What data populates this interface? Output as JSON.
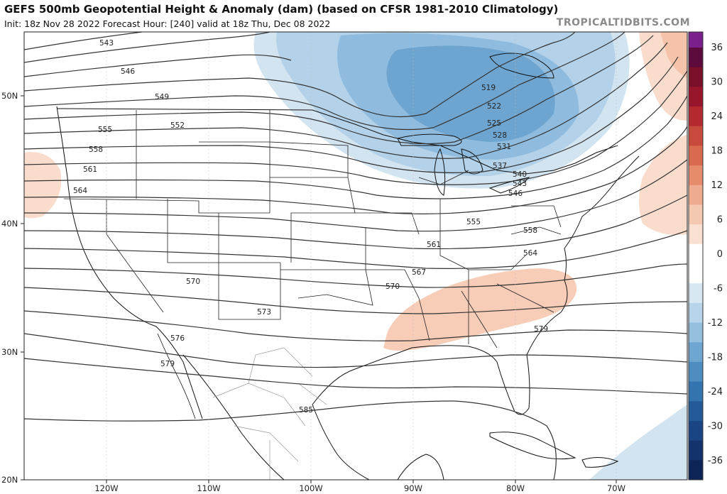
{
  "header": {
    "title": "GEFS 500mb Geopotential Height & Anomaly (dam) (based on CFSR 1981-2010 Climatology)",
    "subtitle": "Init: 18z Nov 28 2022   Forecast Hour: [240]   valid at 18z Thu, Dec 08 2022",
    "brand": "TROPICALTIDBITS.COM"
  },
  "map": {
    "lat_labels": [
      "50N",
      "40N",
      "30N",
      "20N"
    ],
    "lon_labels": [
      "120W",
      "110W",
      "100W",
      "90W",
      "80W",
      "70W"
    ],
    "contour_labels": [
      "543",
      "546",
      "549",
      "552",
      "555",
      "558",
      "561",
      "564",
      "570",
      "573",
      "576",
      "579",
      "585",
      "519",
      "522",
      "525",
      "528",
      "531",
      "537",
      "540",
      "543",
      "546",
      "555",
      "558",
      "561",
      "564",
      "567",
      "570",
      "579"
    ]
  },
  "colorbar": {
    "labels": [
      "36",
      "30",
      "24",
      "18",
      "12",
      "6",
      "0",
      "-6",
      "-12",
      "-18",
      "-24",
      "-30",
      "-36"
    ],
    "colors": [
      "#5d0b3c",
      "#7a0f2a",
      "#98162b",
      "#b3292f",
      "#c84a3c",
      "#d9694f",
      "#e68b6c",
      "#efab8f",
      "#f5c8b2",
      "#f9e0d3",
      "#ffffff",
      "#ffffff",
      "#d7e8f3",
      "#b6d4ea",
      "#94bfdf",
      "#6fa6d1",
      "#4f8dc1",
      "#3373ae",
      "#24599a",
      "#1a4584",
      "#14336d",
      "#0d2456"
    ],
    "top_color": "#7a1f8c"
  }
}
